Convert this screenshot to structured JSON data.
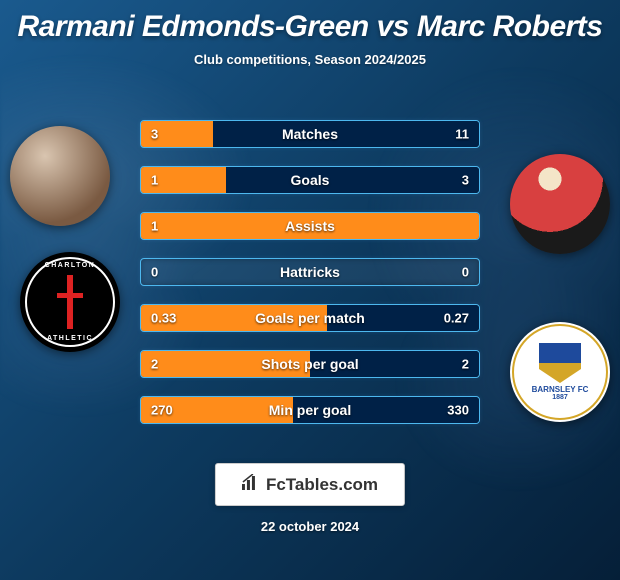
{
  "title": "Rarmani Edmonds-Green vs Marc Roberts",
  "subtitle": "Club competitions, Season 2024/2025",
  "date": "22 october 2024",
  "brand": "FcTables.com",
  "colors": {
    "bar_left": "#ff8c1a",
    "bar_right": "#002147",
    "row_border": "#4db8ef"
  },
  "players": {
    "left": {
      "name": "Rarmani Edmonds-Green",
      "club": "Charlton Athletic"
    },
    "right": {
      "name": "Marc Roberts",
      "club": "Barnsley FC",
      "club_year": "1887"
    }
  },
  "stats": [
    {
      "label": "Matches",
      "left_display": "3",
      "right_display": "11",
      "left_pct": 21.4,
      "right_pct": 78.6
    },
    {
      "label": "Goals",
      "left_display": "1",
      "right_display": "3",
      "left_pct": 25.0,
      "right_pct": 75.0
    },
    {
      "label": "Assists",
      "left_display": "1",
      "right_display": "",
      "left_pct": 100.0,
      "right_pct": 0.0
    },
    {
      "label": "Hattricks",
      "left_display": "0",
      "right_display": "0",
      "left_pct": 0.0,
      "right_pct": 0.0
    },
    {
      "label": "Goals per match",
      "left_display": "0.33",
      "right_display": "0.27",
      "left_pct": 55.0,
      "right_pct": 45.0
    },
    {
      "label": "Shots per goal",
      "left_display": "2",
      "right_display": "2",
      "left_pct": 50.0,
      "right_pct": 50.0
    },
    {
      "label": "Min per goal",
      "left_display": "270",
      "right_display": "330",
      "left_pct": 45.0,
      "right_pct": 55.0
    }
  ]
}
